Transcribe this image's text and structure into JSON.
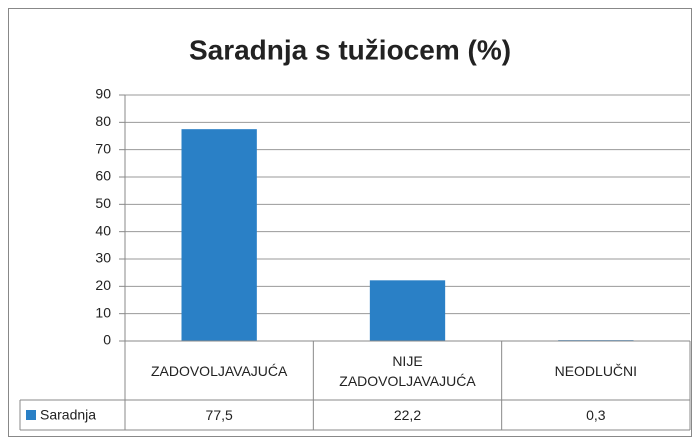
{
  "chart_data": {
    "type": "bar",
    "title": "Saradnja s tužiocem (%)",
    "categories": [
      "ZADOVOLJAVAJUĆA",
      "NIJE ZADOVOLJAVAJUĆA",
      "NEODLUČNI"
    ],
    "series": [
      {
        "name": "Saradnja",
        "color": "#2a80c6",
        "values": [
          77.5,
          22.2,
          0.3
        ],
        "value_labels": [
          "77,5",
          "22,2",
          "0,3"
        ]
      }
    ],
    "ylim": [
      0,
      90
    ],
    "yticks": [
      0,
      10,
      20,
      30,
      40,
      50,
      60,
      70,
      80,
      90
    ],
    "grid": true,
    "data_table": true
  }
}
